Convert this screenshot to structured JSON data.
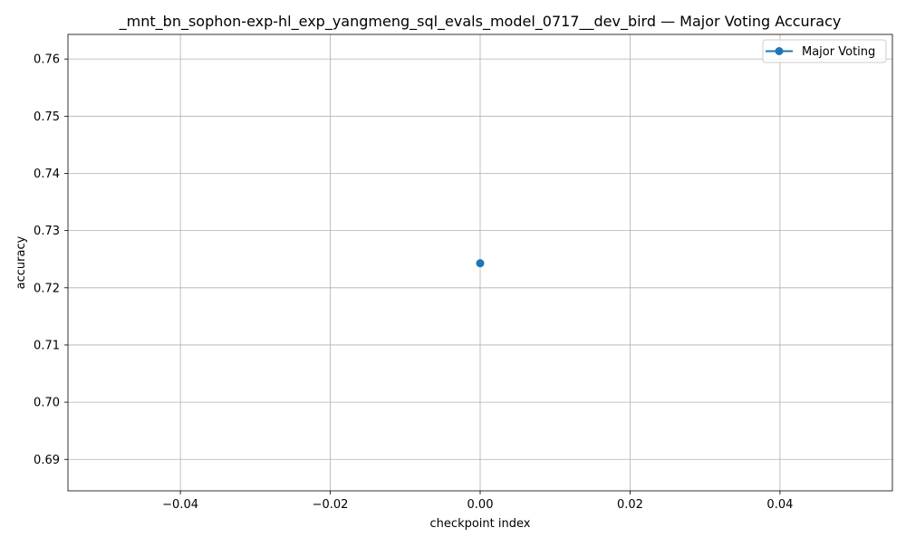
{
  "chart_data": {
    "type": "line",
    "title": "_mnt_bn_sophon-exp-hl_exp_yangmeng_sql_evals_model_0717__dev_bird — Major Voting Accuracy",
    "xlabel": "checkpoint index",
    "ylabel": "accuracy",
    "xlim": [
      -0.055,
      0.055
    ],
    "ylim": [
      0.6845,
      0.7643
    ],
    "x_ticks": [
      -0.04,
      -0.02,
      0.0,
      0.02,
      0.04
    ],
    "x_tick_labels": [
      "−0.04",
      "−0.02",
      "0.00",
      "0.02",
      "0.04"
    ],
    "y_ticks": [
      0.69,
      0.7,
      0.71,
      0.72,
      0.73,
      0.74,
      0.75,
      0.76
    ],
    "y_tick_labels": [
      "0.69",
      "0.70",
      "0.71",
      "0.72",
      "0.73",
      "0.74",
      "0.75",
      "0.76"
    ],
    "grid": true,
    "legend_position": "top-right",
    "series": [
      {
        "name": "Major Voting",
        "color": "#1f77b4",
        "marker": "circle",
        "x": [
          0
        ],
        "y": [
          0.7243
        ]
      }
    ]
  }
}
